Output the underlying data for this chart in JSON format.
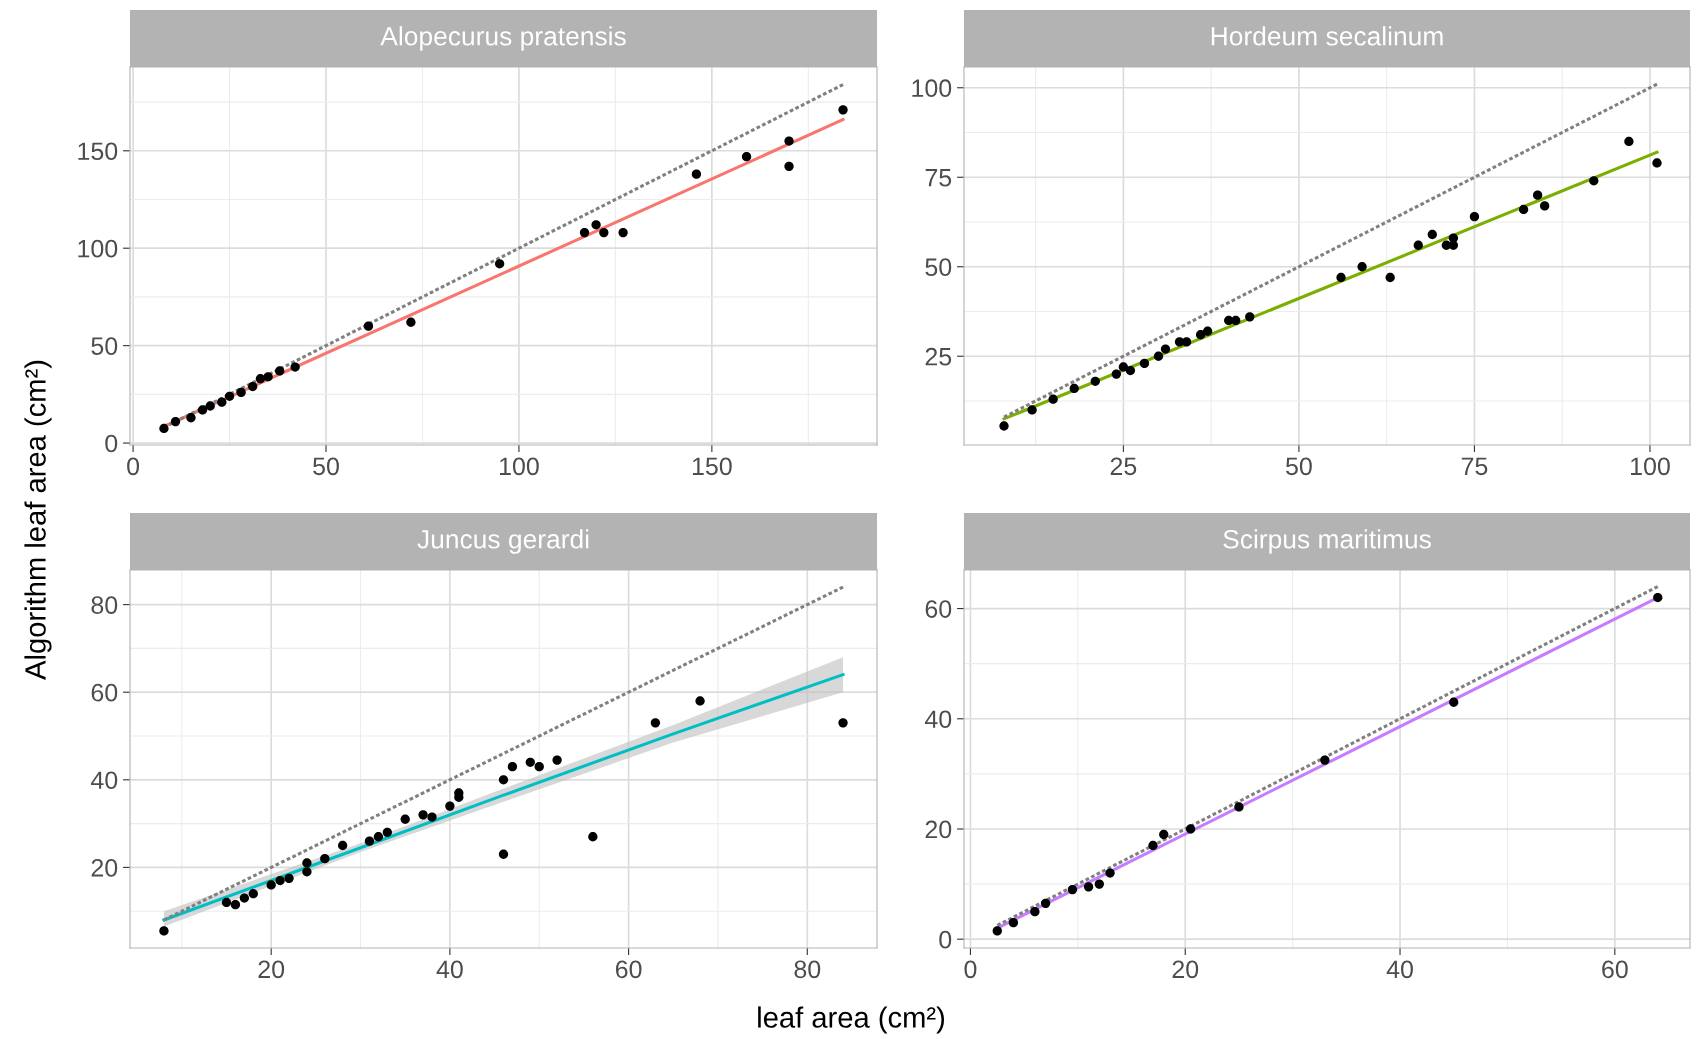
{
  "chart_data": [
    {
      "type": "scatter",
      "title": "Alopecurus pratensis",
      "ylabel": "Algorithm leaf area (cm²)",
      "xlim": [
        -0.8,
        192.8
      ],
      "ylim": [
        -1,
        193
      ],
      "xticks": [
        0,
        50,
        100,
        150
      ],
      "yticks": [
        0,
        50,
        100,
        150
      ],
      "grid": true,
      "legend": false,
      "series": [
        {
          "marker": "circle",
          "color": "#000000",
          "x": [
            8,
            11,
            15,
            18,
            20,
            23,
            25,
            28,
            31,
            33,
            35,
            38,
            42,
            61,
            72,
            95,
            117,
            120,
            122,
            127,
            146,
            159,
            170,
            170,
            184
          ],
          "values": [
            7.5,
            11,
            13,
            17,
            19,
            21,
            24,
            26,
            29,
            33,
            34,
            37,
            39,
            60,
            62,
            92,
            108,
            112,
            108,
            108,
            138,
            147,
            155,
            142,
            171
          ]
        },
        {
          "type": "line",
          "color": "#f8766d",
          "line_style": "solid",
          "x": [
            8,
            184
          ],
          "values": [
            8.5,
            166
          ]
        },
        {
          "type": "line",
          "color": "#808080",
          "line_style": "dashed",
          "x": [
            8,
            184
          ],
          "values": [
            8,
            184
          ]
        }
      ]
    },
    {
      "type": "scatter",
      "title": "Hordeum secalinum",
      "xlim": [
        2.3,
        105.7
      ],
      "ylim": [
        0.2,
        105.8
      ],
      "xticks": [
        25,
        50,
        75,
        100
      ],
      "yticks": [
        25,
        50,
        75,
        100
      ],
      "grid": true,
      "legend": false,
      "series": [
        {
          "marker": "circle",
          "color": "#000000",
          "x": [
            8,
            12,
            15,
            18,
            21,
            24,
            25,
            26,
            28,
            30,
            31,
            33,
            34,
            36,
            37,
            40,
            41,
            43,
            56,
            59,
            63,
            67,
            69,
            71,
            72,
            72,
            75,
            82,
            84,
            85,
            92,
            97,
            101
          ],
          "values": [
            5.5,
            10,
            13,
            16,
            18,
            20,
            22,
            21,
            23,
            25,
            27,
            29,
            29,
            31,
            32,
            35,
            35,
            36,
            47,
            50,
            47,
            56,
            59,
            56,
            58,
            56,
            64,
            66,
            70,
            67,
            74,
            85,
            79
          ]
        },
        {
          "type": "line",
          "color": "#7cae00",
          "line_style": "solid",
          "x": [
            8,
            101
          ],
          "values": [
            7.5,
            82
          ]
        },
        {
          "type": "line",
          "color": "#808080",
          "line_style": "dashed",
          "x": [
            8,
            101
          ],
          "values": [
            8,
            101
          ]
        }
      ]
    },
    {
      "type": "scatter",
      "title": "Juncus gerardi",
      "xlabel": "leaf area (cm²)",
      "xlim": [
        4.2,
        87.8
      ],
      "ylim": [
        1.6,
        87.9
      ],
      "xticks": [
        20,
        40,
        60,
        80
      ],
      "yticks": [
        20,
        40,
        60,
        80
      ],
      "grid": true,
      "legend": false,
      "series": [
        {
          "marker": "circle",
          "color": "#000000",
          "x": [
            8,
            15,
            16,
            17,
            18,
            20,
            21,
            22,
            24,
            24,
            26,
            28,
            31,
            32,
            33,
            35,
            37,
            38,
            40,
            41,
            41,
            46,
            46,
            47,
            49,
            50,
            52,
            56,
            63,
            68,
            84
          ],
          "values": [
            5.5,
            12,
            11.5,
            13,
            14,
            16,
            17,
            17.5,
            19,
            21,
            22,
            25,
            26,
            27,
            28,
            31,
            32,
            31.5,
            34,
            36,
            37,
            40,
            23,
            43,
            44,
            43,
            44.5,
            27,
            53,
            58,
            53
          ]
        },
        {
          "type": "line",
          "color": "#00bfc4",
          "line_style": "solid",
          "x": [
            8,
            30,
            46,
            65,
            84
          ],
          "values": [
            8,
            24.5,
            36.5,
            50.5,
            64
          ],
          "lower": [
            6.5,
            23.5,
            35,
            48.5,
            60
          ],
          "upper": [
            10,
            25.5,
            38,
            52.5,
            68
          ]
        },
        {
          "type": "line",
          "color": "#808080",
          "line_style": "dashed",
          "x": [
            8,
            84
          ],
          "values": [
            8,
            84
          ]
        }
      ]
    },
    {
      "type": "scatter",
      "title": "Scirpus maritimus",
      "xlim": [
        -0.6,
        67
      ],
      "ylim": [
        -1.6,
        67
      ],
      "xticks": [
        0,
        20,
        40,
        60
      ],
      "yticks": [
        0,
        20,
        40,
        60
      ],
      "grid": true,
      "legend": false,
      "series": [
        {
          "marker": "circle",
          "color": "#000000",
          "x": [
            2.5,
            4,
            6,
            7,
            9.5,
            11,
            12,
            13,
            17,
            18,
            20.5,
            25,
            33,
            45,
            64
          ],
          "values": [
            1.5,
            3,
            5,
            6.5,
            9,
            9.5,
            10,
            12,
            17,
            19,
            20,
            24,
            32.5,
            43,
            62
          ]
        },
        {
          "type": "line",
          "color": "#c77cff",
          "line_style": "solid",
          "x": [
            2.5,
            64
          ],
          "values": [
            2,
            62
          ]
        },
        {
          "type": "line",
          "color": "#808080",
          "line_style": "dashed",
          "x": [
            2.5,
            64
          ],
          "values": [
            2.5,
            64
          ]
        }
      ]
    }
  ]
}
